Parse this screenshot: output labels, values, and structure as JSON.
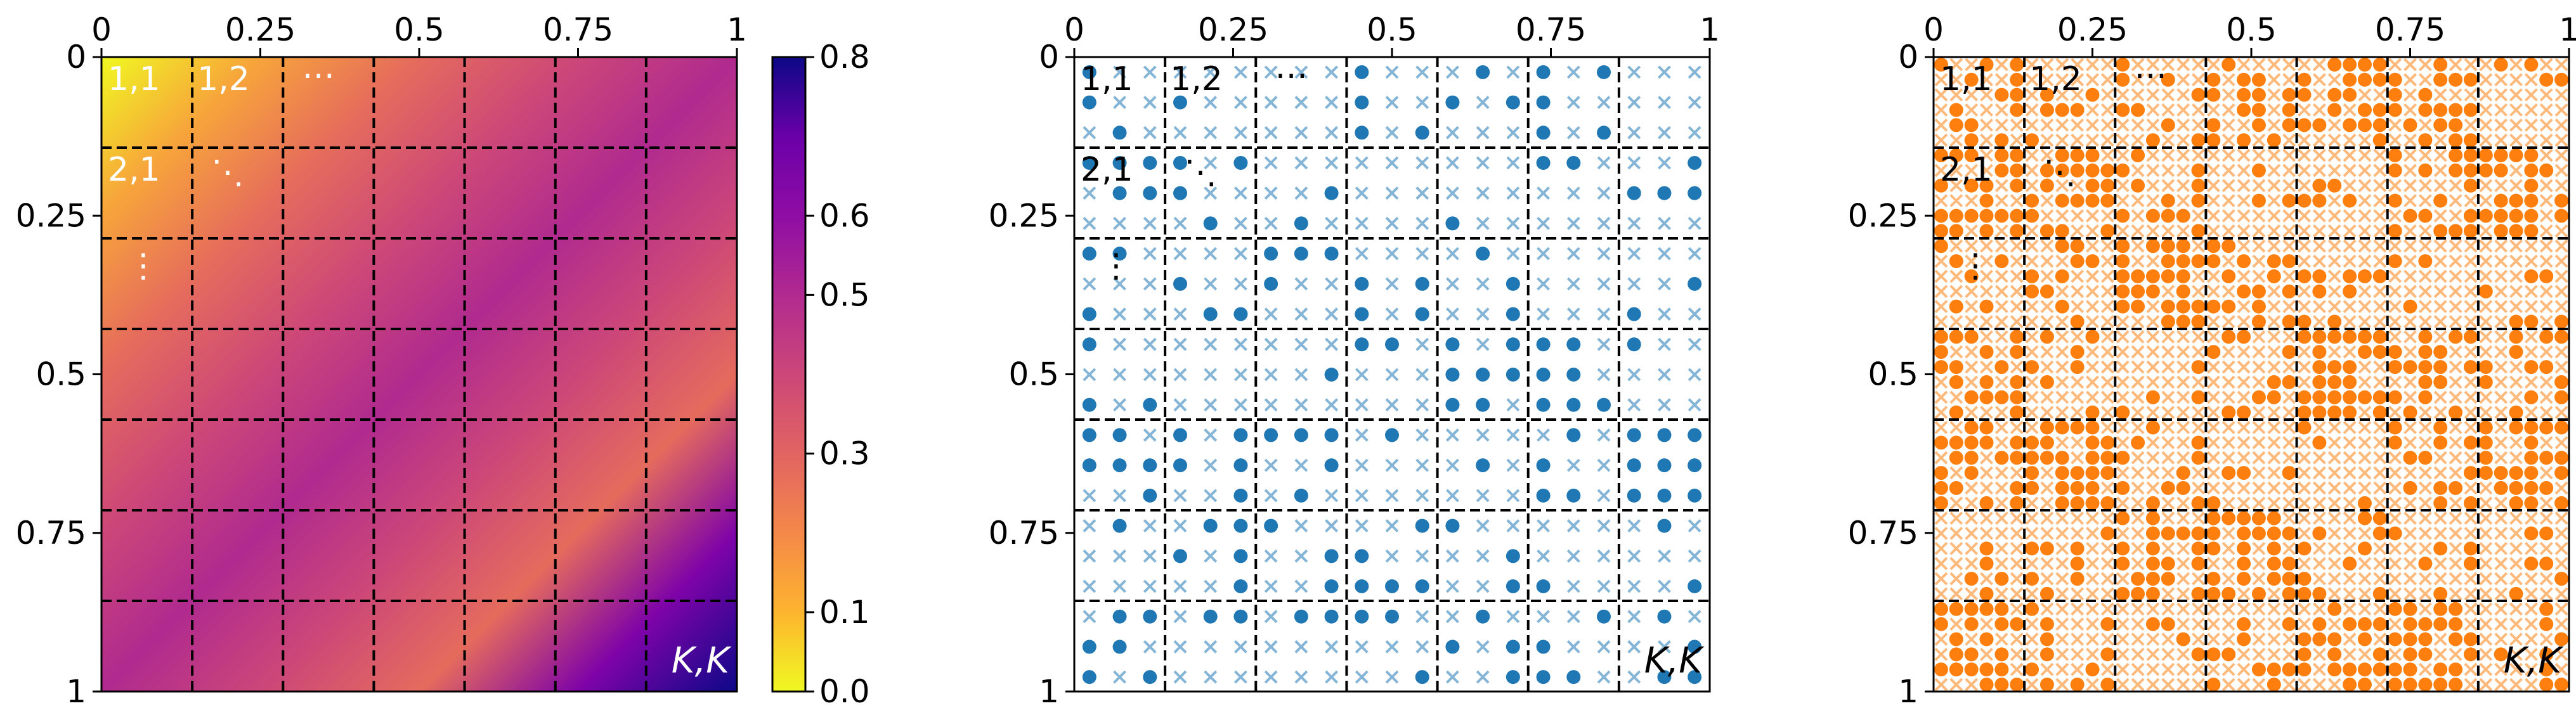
{
  "chart_data": [
    {
      "type": "heatmap",
      "title": "",
      "x": {
        "tick_labels": [
          "0",
          "0.25",
          "0.5",
          "0.75",
          "1"
        ],
        "ticks": [
          0,
          0.25,
          0.5,
          0.75,
          1
        ],
        "range": [
          0,
          1
        ]
      },
      "y": {
        "tick_labels": [
          "0",
          "0.25",
          "0.5",
          "0.75",
          "1"
        ],
        "ticks": [
          0,
          0.25,
          0.5,
          0.75,
          1
        ],
        "range": [
          0,
          1
        ],
        "inverted": true
      },
      "grid": {
        "blocks": 7,
        "style": "dashed",
        "color": "#000000"
      },
      "cell_labels": [
        "1,1",
        "1,2",
        "2,1",
        "K,K"
      ],
      "ellipsis_glyphs": [
        "⋯",
        "⋱",
        "⋮"
      ],
      "value_model": "0.8 - 0.8 * |x - y| (upper-left and lower-right corners at 0, main diagonal at 0.8)",
      "colormap": "plasma_r",
      "colorbar": {
        "tick_labels": [
          "0.0",
          "0.1",
          "0.3",
          "0.5",
          "0.6",
          "0.8"
        ],
        "ticks": [
          0.0,
          0.1,
          0.3,
          0.5,
          0.6,
          0.8
        ],
        "range": [
          0,
          0.8
        ]
      }
    },
    {
      "type": "scatter",
      "title": "",
      "x": {
        "tick_labels": [
          "0",
          "0.25",
          "0.5",
          "0.75",
          "1"
        ],
        "ticks": [
          0,
          0.25,
          0.5,
          0.75,
          1
        ],
        "range": [
          0,
          1
        ]
      },
      "y": {
        "tick_labels": [
          "0",
          "0.25",
          "0.5",
          "0.75",
          "1"
        ],
        "ticks": [
          0,
          0.25,
          0.5,
          0.75,
          1
        ],
        "range": [
          0,
          1
        ],
        "inverted": true
      },
      "grid": {
        "blocks": 7,
        "style": "dashed",
        "color": "#000000"
      },
      "point_grid": 21,
      "markers": {
        "edge": "dot",
        "no_edge": "x"
      },
      "color": "#1f77b4",
      "cell_labels": [
        "1,1",
        "1,2",
        "2,1",
        "K,K"
      ],
      "ellipsis_glyphs": [
        "⋯",
        "⋱",
        "⋮"
      ],
      "seed": 11
    },
    {
      "type": "scatter",
      "title": "",
      "x": {
        "tick_labels": [
          "0",
          "0.25",
          "0.5",
          "0.75",
          "1"
        ],
        "ticks": [
          0,
          0.25,
          0.5,
          0.75,
          1
        ],
        "range": [
          0,
          1
        ]
      },
      "y": {
        "tick_labels": [
          "0",
          "0.25",
          "0.5",
          "0.75",
          "1"
        ],
        "ticks": [
          0,
          0.25,
          0.5,
          0.75,
          1
        ],
        "range": [
          0,
          1
        ],
        "inverted": true
      },
      "grid": {
        "blocks": 7,
        "style": "dashed",
        "color": "#000000"
      },
      "point_grid": 42,
      "markers": {
        "edge": "dot",
        "no_edge": "x"
      },
      "color": "#ff7f0e",
      "cell_labels": [
        "1,1",
        "1,2",
        "2,1",
        "K,K"
      ],
      "ellipsis_glyphs": [
        "⋯",
        "⋱",
        "⋮"
      ],
      "seed": 23
    }
  ]
}
